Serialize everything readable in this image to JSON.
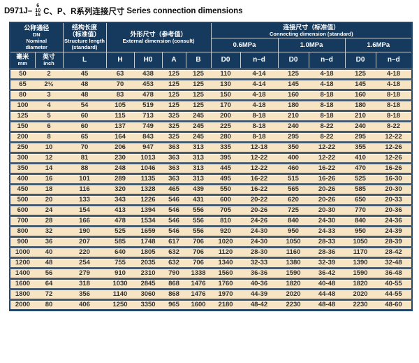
{
  "title": {
    "model": "D971J–",
    "pressure_stack": [
      "6",
      "10",
      "16"
    ],
    "series_zh": "C、P、R系列连接尺寸",
    "series_en": "Series connection dimensions"
  },
  "colors": {
    "header_bg": "#153a5e",
    "row_bg": "#f7e4c3",
    "separator": "#45596e",
    "frame": "#24466a",
    "header_line": "#c2cdd8",
    "cell_text": "#333333"
  },
  "table": {
    "header": {
      "nominal": {
        "zh": "公称通径",
        "dn": "DN",
        "en1": "Nominal",
        "en2": "diameter"
      },
      "structure": {
        "zh1": "结构长度",
        "zh2": "（标准值）",
        "en1": "Structure length",
        "en2": "(standard)"
      },
      "external": {
        "zh": "外形尺寸（参考值）",
        "en": "External dimension (consult)"
      },
      "connecting": {
        "zh": "连接尺寸（标准值）",
        "en": "Connecting dimension (standard)"
      },
      "pressures": [
        "0.6MPa",
        "1.0MPa",
        "1.6MPa"
      ],
      "units": {
        "mm_zh": "毫米",
        "mm_en": "mm",
        "inch_zh": "英寸",
        "inch_en": "inch"
      },
      "dim_cols": [
        "L",
        "H",
        "H0",
        "A",
        "B"
      ],
      "conn_cols": [
        "D0",
        "n–d"
      ]
    },
    "columns": [
      "dn-mm",
      "dn-inch",
      "L",
      "H",
      "H0",
      "A",
      "B",
      "d0-0.6mpa",
      "nd-0.6mpa",
      "d0-1.0mpa",
      "nd-1.0mpa",
      "d0-1.6mpa",
      "nd-1.6mpa"
    ],
    "rows": [
      [
        "50",
        "2",
        "45",
        "63",
        "438",
        "125",
        "125",
        "110",
        "4-14",
        "125",
        "4-18",
        "125",
        "4-18"
      ],
      [
        "65",
        "2½",
        "48",
        "70",
        "453",
        "125",
        "125",
        "130",
        "4-14",
        "145",
        "4-18",
        "145",
        "4-18"
      ],
      [
        "80",
        "3",
        "48",
        "83",
        "478",
        "125",
        "125",
        "150",
        "4-18",
        "160",
        "8-18",
        "160",
        "8-18"
      ],
      [
        "100",
        "4",
        "54",
        "105",
        "519",
        "125",
        "125",
        "170",
        "4-18",
        "180",
        "8-18",
        "180",
        "8-18"
      ],
      [
        "125",
        "5",
        "60",
        "115",
        "713",
        "325",
        "245",
        "200",
        "8-18",
        "210",
        "8-18",
        "210",
        "8-18"
      ],
      [
        "150",
        "6",
        "60",
        "137",
        "749",
        "325",
        "245",
        "225",
        "8-18",
        "240",
        "8-22",
        "240",
        "8-22"
      ],
      [
        "200",
        "8",
        "65",
        "164",
        "843",
        "325",
        "245",
        "280",
        "8-18",
        "295",
        "8-22",
        "295",
        "12-22"
      ],
      [
        "250",
        "10",
        "70",
        "206",
        "947",
        "363",
        "313",
        "335",
        "12-18",
        "350",
        "12-22",
        "355",
        "12-26"
      ],
      [
        "300",
        "12",
        "81",
        "230",
        "1013",
        "363",
        "313",
        "395",
        "12-22",
        "400",
        "12-22",
        "410",
        "12-26"
      ],
      [
        "350",
        "14",
        "88",
        "248",
        "1046",
        "363",
        "313",
        "445",
        "12-22",
        "460",
        "16-22",
        "470",
        "16-26"
      ],
      [
        "400",
        "16",
        "101",
        "289",
        "1135",
        "363",
        "313",
        "495",
        "16-22",
        "515",
        "16-26",
        "525",
        "16-30"
      ],
      [
        "450",
        "18",
        "116",
        "320",
        "1328",
        "465",
        "439",
        "550",
        "16-22",
        "565",
        "20-26",
        "585",
        "20-30"
      ],
      [
        "500",
        "20",
        "133",
        "343",
        "1226",
        "546",
        "431",
        "600",
        "20-22",
        "620",
        "20-26",
        "650",
        "20-33"
      ],
      [
        "600",
        "24",
        "154",
        "413",
        "1394",
        "546",
        "556",
        "705",
        "20-26",
        "725",
        "20-30",
        "770",
        "20-36"
      ],
      [
        "700",
        "28",
        "166",
        "478",
        "1534",
        "546",
        "556",
        "810",
        "24-26",
        "840",
        "24-30",
        "840",
        "24-36"
      ],
      [
        "800",
        "32",
        "190",
        "525",
        "1659",
        "546",
        "556",
        "920",
        "24-30",
        "950",
        "24-33",
        "950",
        "24-39"
      ],
      [
        "900",
        "36",
        "207",
        "585",
        "1748",
        "617",
        "706",
        "1020",
        "24-30",
        "1050",
        "28-33",
        "1050",
        "28-39"
      ],
      [
        "1000",
        "40",
        "220",
        "640",
        "1805",
        "632",
        "706",
        "1120",
        "28-30",
        "1160",
        "28-36",
        "1170",
        "28-42"
      ],
      [
        "1200",
        "48",
        "254",
        "755",
        "2035",
        "632",
        "706",
        "1340",
        "32-33",
        "1380",
        "32-39",
        "1390",
        "32-48"
      ],
      [
        "1400",
        "56",
        "279",
        "910",
        "2310",
        "790",
        "1338",
        "1560",
        "36-36",
        "1590",
        "36-42",
        "1590",
        "36-48"
      ],
      [
        "1600",
        "64",
        "318",
        "1030",
        "2845",
        "868",
        "1476",
        "1760",
        "40-36",
        "1820",
        "40-48",
        "1820",
        "40-55"
      ],
      [
        "1800",
        "72",
        "356",
        "1140",
        "3060",
        "868",
        "1476",
        "1970",
        "44-39",
        "2020",
        "44-48",
        "2020",
        "44-55"
      ],
      [
        "2000",
        "80",
        "406",
        "1250",
        "3350",
        "965",
        "1600",
        "2180",
        "48-42",
        "2230",
        "48-48",
        "2230",
        "48-60"
      ]
    ]
  }
}
